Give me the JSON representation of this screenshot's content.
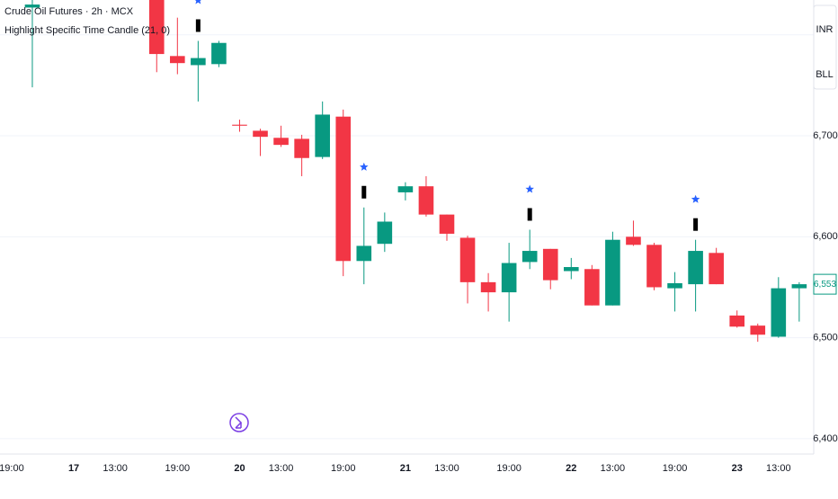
{
  "chart_data": {
    "type": "candlestick",
    "title": "Crude Oil Futures · 2h · MCX",
    "subtitle": "Highlight Specific Time Candle (21, 0)",
    "currency": "INR",
    "unit": "BLL",
    "up_color": "#089981",
    "down_color": "#f23645",
    "highlight_color": "#2962ff",
    "x": [
      0,
      6,
      7,
      8,
      9,
      10,
      11,
      12,
      13,
      14,
      15,
      16,
      17,
      18,
      19,
      20,
      21,
      22,
      23,
      24,
      25,
      26,
      27,
      28,
      29,
      30,
      31,
      32,
      33,
      34,
      35,
      36,
      37
    ],
    "open": [
      6827,
      6835,
      6779,
      6770,
      6771,
      6711,
      6705,
      6698,
      6697,
      6679,
      6719,
      6576,
      6593,
      6644,
      6650,
      6622,
      6599,
      6555,
      6545,
      6575,
      6588,
      6566,
      6568,
      6532,
      6600,
      6592,
      6549,
      6553,
      6584,
      6522,
      6512,
      6501,
      6549
    ],
    "high": [
      6835,
      6835,
      6817,
      6794,
      6794,
      6716,
      6707,
      6710,
      6701,
      6734,
      6726,
      6629,
      6624,
      6654,
      6660,
      6622,
      6601,
      6564,
      6594,
      6607,
      6588,
      6579,
      6572,
      6605,
      6616,
      6594,
      6565,
      6597,
      6589,
      6527,
      6514,
      6560,
      6555
    ],
    "low": [
      6748,
      6763,
      6761,
      6734,
      6768,
      6704,
      6680,
      6689,
      6660,
      6677,
      6561,
      6553,
      6585,
      6636,
      6620,
      6596,
      6534,
      6526,
      6516,
      6568,
      6548,
      6558,
      6532,
      6532,
      6591,
      6547,
      6526,
      6526,
      6553,
      6510,
      6496,
      6500,
      6516
    ],
    "close": [
      6830,
      6781,
      6772,
      6777,
      6792,
      6710,
      6699,
      6691,
      6678,
      6721,
      6576,
      6591,
      6615,
      6650,
      6622,
      6603,
      6555,
      6545,
      6574,
      6586,
      6557,
      6570,
      6532,
      6597,
      6592,
      6550,
      6554,
      6586,
      6553,
      6511,
      6503,
      6549,
      6553
    ],
    "highlight_x": [
      8,
      16,
      24,
      32
    ],
    "last_price": {
      "value": 6553,
      "label": "6,553"
    },
    "xlim": [
      -1.56,
      37.7
    ],
    "xticks": [
      {
        "value": -1,
        "label": "19:00"
      },
      {
        "value": 2,
        "label": "17"
      },
      {
        "value": 4,
        "label": "13:00"
      },
      {
        "value": 7,
        "label": "19:00"
      },
      {
        "value": 10,
        "label": "20"
      },
      {
        "value": 12,
        "label": "13:00"
      },
      {
        "value": 15,
        "label": "19:00"
      },
      {
        "value": 18,
        "label": "21"
      },
      {
        "value": 20,
        "label": "13:00"
      },
      {
        "value": 23,
        "label": "19:00"
      },
      {
        "value": 26,
        "label": "22"
      },
      {
        "value": 28,
        "label": "13:00"
      },
      {
        "value": 31,
        "label": "19:00"
      },
      {
        "value": 34,
        "label": "23"
      },
      {
        "value": 36,
        "label": "13:00"
      }
    ],
    "ylim": [
      6384.8,
      6834.5
    ],
    "yticks": [
      {
        "value": 6400,
        "label": "6,400"
      },
      {
        "value": 6500,
        "label": "6,500"
      },
      {
        "value": 6600,
        "label": "6,600"
      },
      {
        "value": 6700,
        "label": "6,700"
      },
      {
        "value": 6800,
        "label": null
      }
    ],
    "grid": true
  }
}
